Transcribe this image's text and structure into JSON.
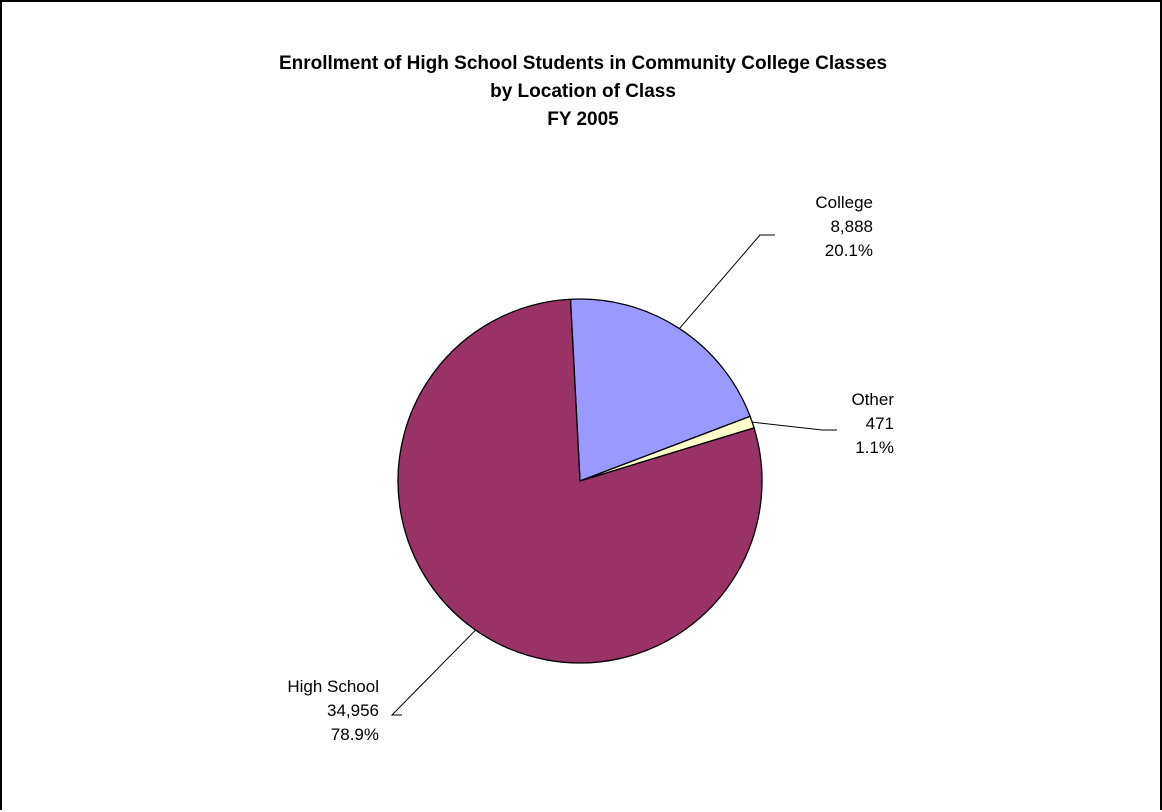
{
  "chart_data": {
    "type": "pie",
    "title": [
      "Enrollment of High School Students in Community College Classes",
      "by Location of Class",
      "FY 2005"
    ],
    "slices": [
      {
        "label": "College",
        "value": 8888,
        "value_text": "8,888",
        "percent_text": "20.1%",
        "color": "#9999FF"
      },
      {
        "label": "Other",
        "value": 471,
        "value_text": "471",
        "percent_text": "1.1%",
        "color": "#FFFFCC"
      },
      {
        "label": "High School",
        "value": 34956,
        "value_text": "34,956",
        "percent_text": "78.9%",
        "color": "#993366"
      }
    ],
    "start_angle_deg": -3,
    "direction": "clockwise",
    "legend": "none",
    "slice_border_color": "#000000"
  }
}
